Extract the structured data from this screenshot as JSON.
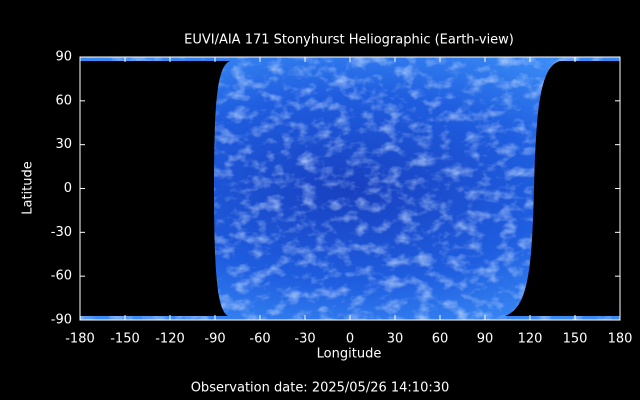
{
  "chart_data": {
    "type": "image",
    "title": "EUVI/AIA 171 Stonyhurst Heliographic (Earth-view)",
    "xlabel": "Longitude",
    "ylabel": "Latitude",
    "footer": "Observation date: 2025/05/26 14:10:30",
    "xlim": [
      -180,
      180
    ],
    "ylim": [
      -90,
      90
    ],
    "xticks": [
      -180,
      -150,
      -120,
      -90,
      -60,
      -30,
      0,
      30,
      60,
      90,
      120,
      150,
      180
    ],
    "yticks": [
      -90,
      -60,
      -30,
      0,
      30,
      60,
      90
    ]
  }
}
